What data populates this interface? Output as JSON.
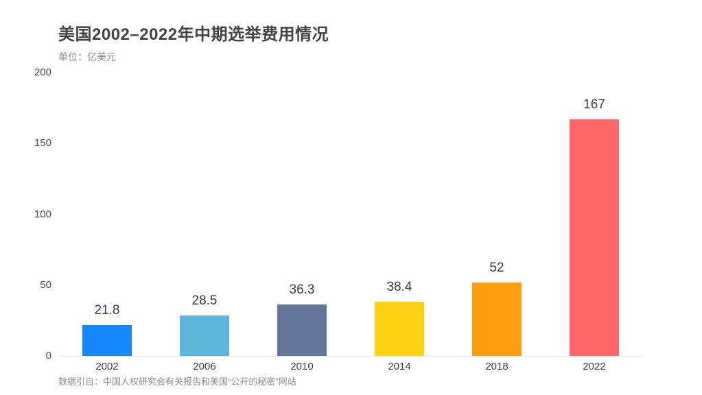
{
  "header": {
    "title": "美国2002–2022年中期选举费用情况",
    "unit_label": "单位：亿美元"
  },
  "footer": {
    "source_note": "数据引自：中国人权研究会有关报告和美国“公开的秘密”网站"
  },
  "chart_data": {
    "type": "bar",
    "title": "美国2002–2022年中期选举费用情况",
    "unit": "亿美元",
    "categories": [
      "2002",
      "2006",
      "2010",
      "2014",
      "2018",
      "2022"
    ],
    "values": [
      21.8,
      28.5,
      36.3,
      38.4,
      52,
      167
    ],
    "value_labels": [
      "21.8",
      "28.5",
      "36.3",
      "38.4",
      "52",
      "167"
    ],
    "bar_colors": [
      "#1388fb",
      "#5eb6dd",
      "#64779b",
      "#ffd313",
      "#fb9e0f",
      "#fd6768"
    ],
    "xlabel": "",
    "ylabel": "单位：亿美元",
    "ylim": [
      0,
      200
    ],
    "yticks": [
      0,
      50,
      100,
      150,
      200
    ],
    "grid": false,
    "legend": false,
    "source": "数据引自：中国人权研究会有关报告和美国“公开的秘密”网站"
  },
  "colors": {
    "background": "#ffffff",
    "title_text": "#424242",
    "value_label_text": "#3a3a3a",
    "tick_text": "#4a4a4a",
    "muted_text": "#8a8a8a",
    "axis_line": "#e7e7e7"
  }
}
